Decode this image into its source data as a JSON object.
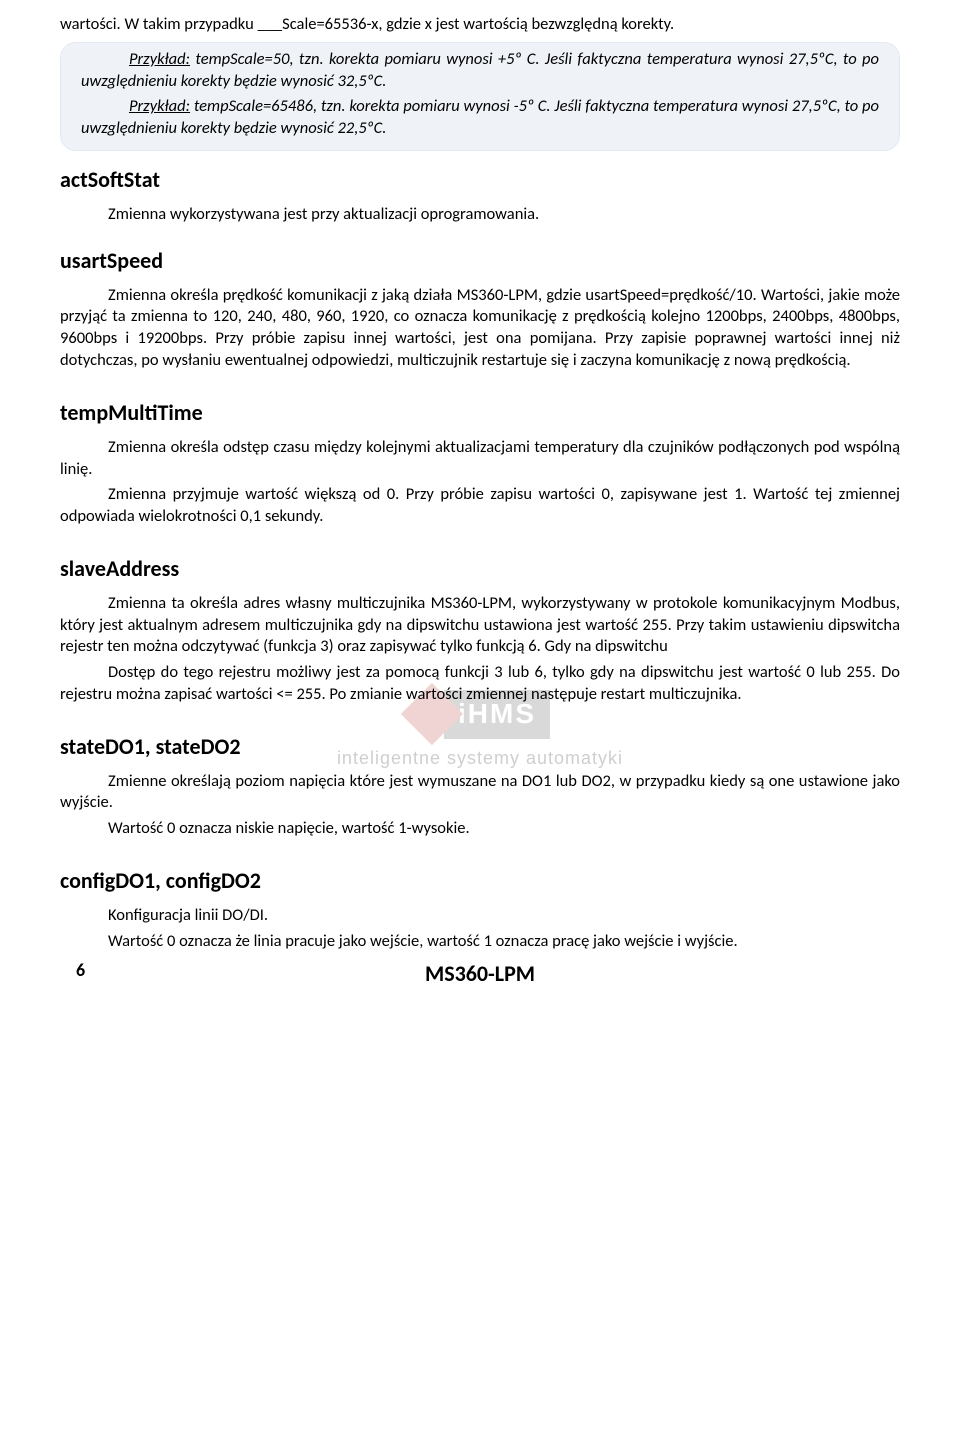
{
  "intro_line": "wartości. W takim przypadku ___Scale=65536-x, gdzie x jest wartością bezwzględną korekty.",
  "example_box": {
    "line1_prefix": "Przykład:",
    "line1_rest": " tempScale=50, tzn. korekta pomiaru wynosi +5º C. Jeśli faktyczna temperatura wynosi 27,5ºC, to po uwzględnieniu korekty będzie wynosić 32,5ºC.",
    "line2_prefix": "Przykład:",
    "line2_rest": " tempScale=65486, tzn. korekta pomiaru wynosi -5º C. Jeśli faktyczna temperatura wynosi 27,5ºC, to po uwzględnieniu korekty będzie wynosić 22,5ºC."
  },
  "sections": {
    "actSoftStat": {
      "title": "actSoftStat",
      "p1": "Zmienna wykorzystywana jest przy aktualizacji oprogramowania."
    },
    "usartSpeed": {
      "title": "usartSpeed",
      "p1": "Zmienna określa prędkość komunikacji z jaką działa MS360-LPM, gdzie usartSpeed=prędkość/10. Wartości, jakie może przyjąć ta zmienna to 120, 240, 480, 960, 1920, co oznacza komunikację z prędkością kolejno 1200bps, 2400bps, 4800bps, 9600bps i 19200bps. Przy próbie zapisu innej wartości, jest ona pomijana. Przy zapisie poprawnej wartości innej niż dotychczas, po wysłaniu ewentualnej odpowiedzi, multiczujnik restartuje się i zaczyna komunikację z nową prędkością."
    },
    "tempMultiTime": {
      "title": "tempMultiTime",
      "p1": "Zmienna określa odstęp czasu między kolejnymi aktualizacjami temperatury dla  czujników podłączonych pod wspólną linię.",
      "p2": "Zmienna przyjmuje wartość większą od 0. Przy próbie zapisu wartości 0, zapisywane jest 1. Wartość tej zmiennej odpowiada wielokrotności 0,1 sekundy."
    },
    "slaveAddress": {
      "title": "slaveAddress",
      "p1": "Zmienna ta określa adres własny multiczujnika MS360-LPM, wykorzystywany w protokole komunikacyjnym Modbus, który jest aktualnym adresem multiczujnika gdy na dipswitchu ustawiona jest wartość 255. Przy takim ustawieniu dipswitcha rejestr ten można odczytywać (funkcja 3) oraz zapisywać tylko funkcją 6. Gdy na dipswitchu",
      "p2": "Dostęp do tego rejestru możliwy jest za pomocą funkcji 3 lub 6, tylko gdy  na dipswitchu jest wartość 0 lub 255. Do rejestru można zapisać wartości <= 255. Po zmianie wartości zmiennej następuje restart multiczujnika."
    },
    "stateDO": {
      "title": "stateDO1, stateDO2",
      "p1": "Zmienne określają poziom napięcia które jest wymuszane na DO1 lub DO2, w przypadku kiedy są one ustawione jako wyjście.",
      "p2": "Wartość 0 oznacza niskie napięcie, wartość 1-wysokie."
    },
    "configDO": {
      "title": "configDO1, configDO2",
      "p1": "Konfiguracja linii DO/DI.",
      "p2": "Wartość 0 oznacza że linia pracuje jako wejście, wartość 1 oznacza pracę jako wejście i wyjście."
    }
  },
  "watermark": {
    "logo_text": "iHMS",
    "tagline": "inteligentne systemy automatyki"
  },
  "footer": {
    "page": "6",
    "title": "MS360-LPM"
  }
}
